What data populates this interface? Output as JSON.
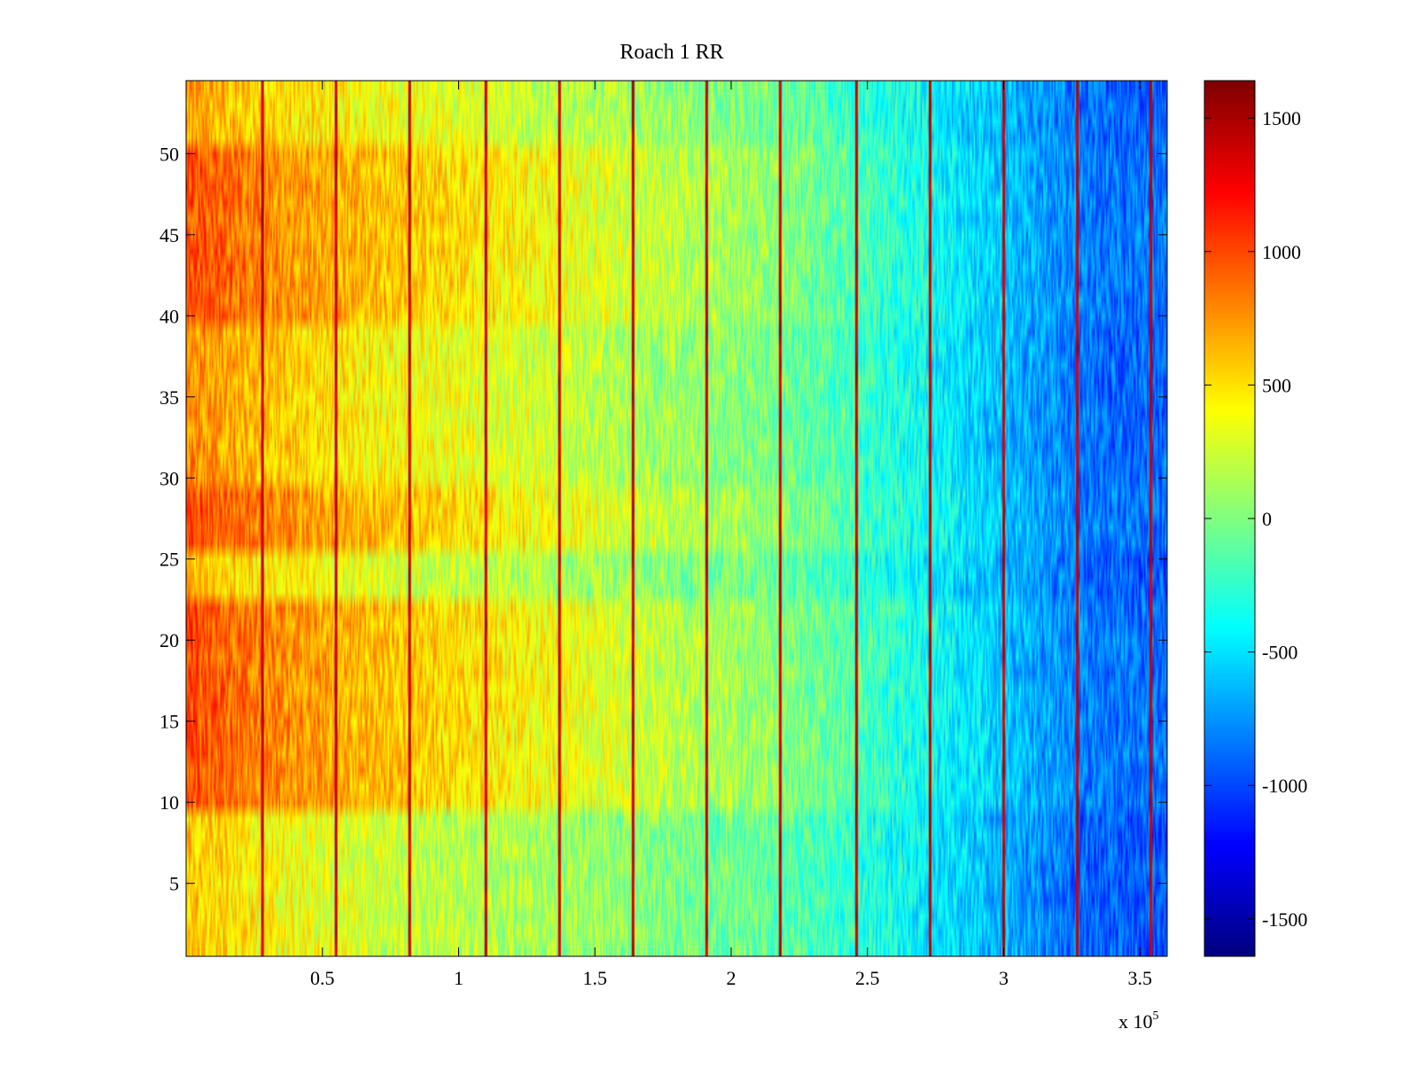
{
  "chart_data": {
    "type": "heatmap",
    "title": "Roach 1 RR",
    "xlabel": "",
    "ylabel": "",
    "x_multiplier_label": "x 10",
    "x_multiplier_exponent": "5",
    "xlim": [
      0,
      3.6
    ],
    "ylim": [
      0.5,
      54.5
    ],
    "x_ticks": [
      0.5,
      1,
      1.5,
      2,
      2.5,
      3,
      3.5
    ],
    "x_tick_labels": [
      "0.5",
      "1",
      "1.5",
      "2",
      "2.5",
      "3",
      "3.5"
    ],
    "y_ticks": [
      5,
      10,
      15,
      20,
      25,
      30,
      35,
      40,
      45,
      50
    ],
    "y_tick_labels": [
      "5",
      "10",
      "15",
      "20",
      "25",
      "30",
      "35",
      "40",
      "45",
      "50"
    ],
    "n_rows": 54,
    "colormap": "jet",
    "clim": [
      -1640,
      1640
    ],
    "colorbar_ticks": [
      1500,
      1000,
      500,
      0,
      -500,
      -1000,
      -1500
    ],
    "colorbar_tick_labels": [
      "1500",
      "1000",
      "500",
      "0",
      "-500",
      "-1000",
      "-1500"
    ],
    "trend_x": [
      0,
      0.3,
      0.6,
      0.9,
      1.2,
      1.5,
      1.8,
      2.1,
      2.4,
      2.7,
      3.0,
      3.3,
      3.6
    ],
    "trend_values": [
      850,
      650,
      520,
      430,
      330,
      230,
      120,
      20,
      -150,
      -380,
      -620,
      -860,
      -900
    ],
    "bright_boundaries_x": [
      0.28,
      0.55,
      0.82,
      1.1,
      1.37,
      1.64,
      1.91,
      2.18,
      2.46,
      2.73,
      3.0,
      3.27,
      3.54
    ],
    "row_band_offsets": [
      {
        "rows": [
          1,
          9
        ],
        "offset": -250
      },
      {
        "rows": [
          10,
          22
        ],
        "offset": 150
      },
      {
        "rows": [
          23,
          25
        ],
        "offset": -200
      },
      {
        "rows": [
          26,
          29
        ],
        "offset": 150
      },
      {
        "rows": [
          30,
          39
        ],
        "offset": -60
      },
      {
        "rows": [
          40,
          50
        ],
        "offset": 140
      },
      {
        "rows": [
          51,
          54
        ],
        "offset": -120
      }
    ]
  }
}
